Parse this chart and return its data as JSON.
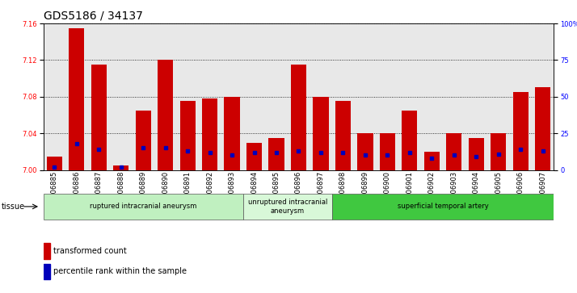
{
  "title": "GDS5186 / 34137",
  "samples": [
    "GSM1306885",
    "GSM1306886",
    "GSM1306887",
    "GSM1306888",
    "GSM1306889",
    "GSM1306890",
    "GSM1306891",
    "GSM1306892",
    "GSM1306893",
    "GSM1306894",
    "GSM1306895",
    "GSM1306896",
    "GSM1306897",
    "GSM1306898",
    "GSM1306899",
    "GSM1306900",
    "GSM1306901",
    "GSM1306902",
    "GSM1306903",
    "GSM1306904",
    "GSM1306905",
    "GSM1306906",
    "GSM1306907"
  ],
  "transformed_count": [
    7.015,
    7.155,
    7.115,
    7.005,
    7.065,
    7.12,
    7.075,
    7.078,
    7.08,
    7.03,
    7.035,
    7.115,
    7.08,
    7.075,
    7.04,
    7.04,
    7.065,
    7.02,
    7.04,
    7.035,
    7.04,
    7.085,
    7.09
  ],
  "percentile_rank": [
    2,
    18,
    14,
    2,
    15,
    15,
    13,
    12,
    10,
    12,
    12,
    13,
    12,
    12,
    10,
    10,
    12,
    8,
    10,
    9,
    11,
    14,
    13
  ],
  "groups": [
    {
      "label": "ruptured intracranial aneurysm",
      "start": 0,
      "end": 9,
      "color": "#c0f0c0"
    },
    {
      "label": "unruptured intracranial\naneurysm",
      "start": 9,
      "end": 13,
      "color": "#d8f8d8"
    },
    {
      "label": "superficial temporal artery",
      "start": 13,
      "end": 23,
      "color": "#40c840"
    }
  ],
  "ylim": [
    7.0,
    7.16
  ],
  "y_ticks": [
    7.0,
    7.04,
    7.08,
    7.12,
    7.16
  ],
  "right_yticks": [
    0,
    25,
    50,
    75,
    100
  ],
  "bar_color": "#cc0000",
  "dot_color": "#0000bb",
  "bg_color": "#e8e8e8",
  "title_fontsize": 10,
  "tick_fontsize": 6,
  "tissue_label": "tissue",
  "legend_items": [
    "transformed count",
    "percentile rank within the sample"
  ]
}
